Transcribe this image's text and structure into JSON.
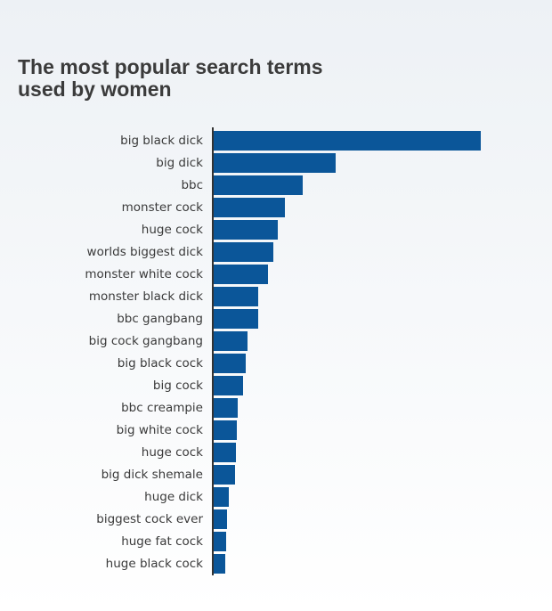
{
  "chart_data": {
    "type": "hbar",
    "title": "The most popular search terms",
    "subtitle": "used by women",
    "categories": [
      "big black dick",
      "big dick",
      "bbc",
      "monster cock",
      "huge cock",
      "worlds biggest dick",
      "monster white cock",
      "monster black dick",
      "bbc gangbang",
      "big cock gangbang",
      "big black cock",
      "big cock",
      "bbc creampie",
      "big white cock",
      "huge cock",
      "big dick shemale",
      "huge dick",
      "biggest cock ever",
      "huge fat cock",
      "huge black cock"
    ],
    "values": [
      300,
      137,
      100,
      80,
      72,
      67,
      61,
      50,
      50,
      38,
      36,
      33,
      27,
      26,
      25,
      24,
      17,
      15,
      14,
      13
    ],
    "color": "#0b5699",
    "xlim": [
      0,
      300
    ]
  }
}
